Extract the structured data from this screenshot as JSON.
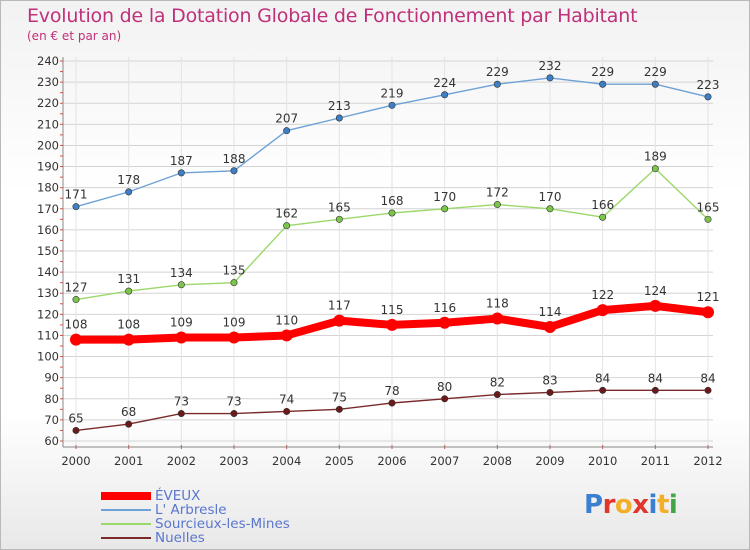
{
  "chart_data": {
    "type": "line",
    "title": "Evolution de la Dotation Globale de Fonctionnement par Habitant",
    "subtitle": "(en € et par an)",
    "xlabel": "",
    "ylabel": "",
    "x": [
      "2000",
      "2001",
      "2002",
      "2003",
      "2004",
      "2005",
      "2006",
      "2007",
      "2008",
      "2009",
      "2010",
      "2011",
      "2012"
    ],
    "ylim": [
      60,
      240
    ],
    "yticks": [
      60,
      70,
      80,
      90,
      100,
      110,
      120,
      130,
      140,
      150,
      160,
      170,
      180,
      190,
      200,
      210,
      220,
      230,
      240
    ],
    "grid": true,
    "legend": "bottom-left",
    "series": [
      {
        "name": "L' Arbresle",
        "color": "#6ea1d6",
        "point_color": "#3d7fc4",
        "values": [
          171,
          178,
          187,
          188,
          207,
          213,
          219,
          224,
          229,
          232,
          229,
          229,
          223
        ]
      },
      {
        "name": "Sourcieux-les-Mines",
        "color": "#9bd86c",
        "point_color": "#7bc64a",
        "values": [
          127,
          131,
          134,
          135,
          162,
          165,
          168,
          170,
          172,
          170,
          166,
          189,
          165
        ]
      },
      {
        "name": "ÉVEUX",
        "color": "#ff0000",
        "point_color": "#ff0000",
        "values": [
          108,
          108,
          109,
          109,
          110,
          117,
          115,
          116,
          118,
          114,
          122,
          124,
          121
        ]
      },
      {
        "name": "Nuelles",
        "color": "#7a2a2a",
        "point_color": "#6a1a1a",
        "values": [
          65,
          68,
          73,
          73,
          74,
          75,
          78,
          80,
          82,
          83,
          84,
          84,
          84
        ]
      }
    ],
    "legend_order": [
      "ÉVEUX",
      "L' Arbresle",
      "Sourcieux-les-Mines",
      "Nuelles"
    ]
  },
  "logo": {
    "text": "Proxiti"
  }
}
